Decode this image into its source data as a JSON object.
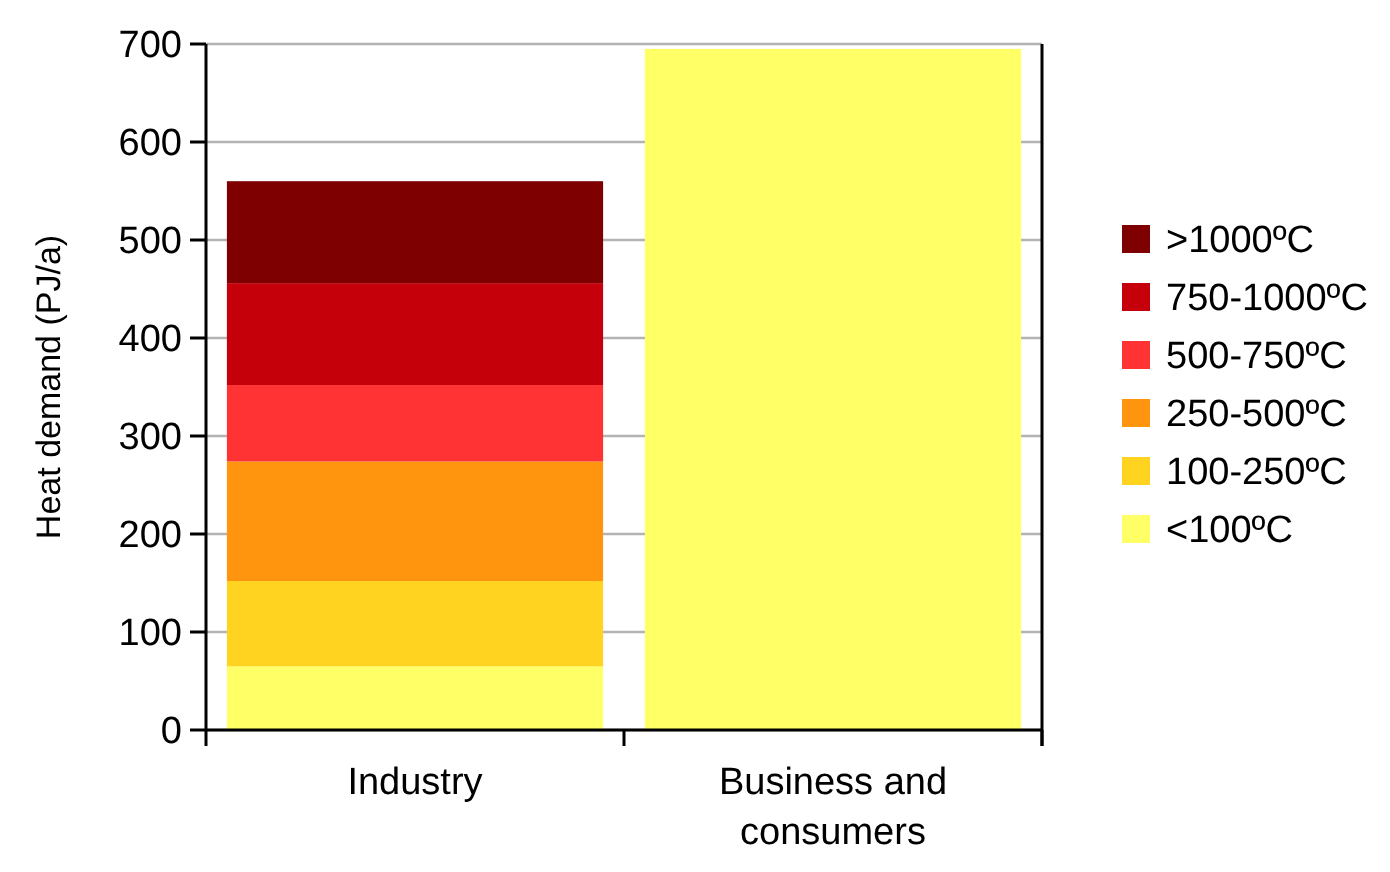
{
  "chart_data": {
    "type": "bar",
    "stacked": true,
    "ylabel": "Heat demand (PJ/a)",
    "categories": [
      "Industry",
      "Business and consumers"
    ],
    "series": [
      {
        "name": "<100ºC",
        "color": "#ffff66",
        "values": [
          65,
          695
        ]
      },
      {
        "name": "100-250ºC",
        "color": "#ffd320",
        "values": [
          87,
          0
        ]
      },
      {
        "name": "250-500ºC",
        "color": "#ff950e",
        "values": [
          122,
          0
        ]
      },
      {
        "name": "500-750ºC",
        "color": "#ff3333",
        "values": [
          78,
          0
        ]
      },
      {
        "name": "750-1000ºC",
        "color": "#c5000b",
        "values": [
          104,
          0
        ]
      },
      {
        "name": ">1000ºC",
        "color": "#7e0000",
        "values": [
          104,
          0
        ]
      }
    ],
    "ylim": [
      0,
      700
    ],
    "yticks": [
      0,
      100,
      200,
      300,
      400,
      500,
      600,
      700
    ],
    "grid": "y",
    "legend": "right"
  }
}
